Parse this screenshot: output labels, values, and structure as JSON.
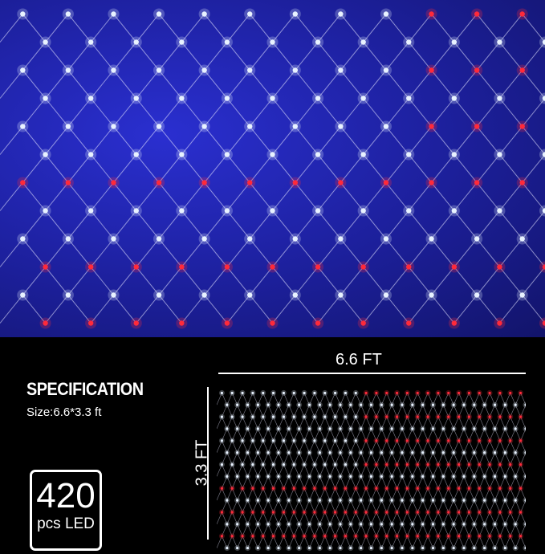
{
  "spec": {
    "title": "SPECIFICATION",
    "size": "Size:6.6*3.3 ft",
    "led_count": "420",
    "led_unit": "pcs LED"
  },
  "dimensions": {
    "width": "6.6 FT",
    "height": "3.3 FT"
  },
  "colors": {
    "blue": "#1c1f9a",
    "red": "#ff2a3a",
    "white": "#e8f2ff"
  }
}
